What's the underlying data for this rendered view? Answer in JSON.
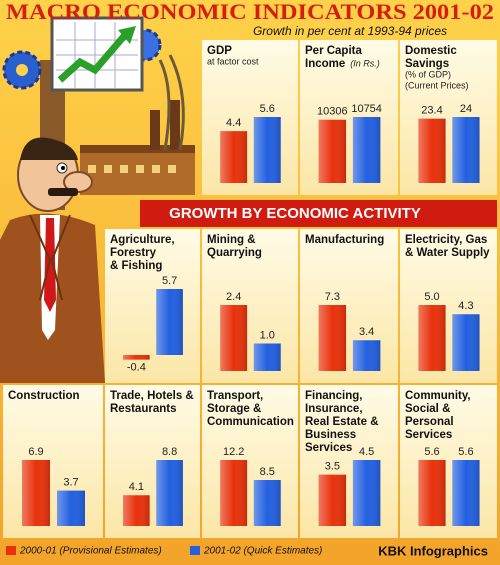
{
  "title": "MACRO ECONOMIC INDICATORS 2001-02",
  "subtitle": "Growth in per cent at 1993-94 prices",
  "section_heading": "GROWTH BY ECONOMIC ACTIVITY",
  "legend": [
    {
      "name": "2000-01 (Provisional Estimates)",
      "color": "#e8320c"
    },
    {
      "name": "2001-02 (Quick Estimates)",
      "color": "#2360e0"
    }
  ],
  "credit": "KBK Infographics",
  "chart_data": [
    {
      "type": "bar",
      "title": [
        "GDP"
      ],
      "subtitle": [
        "at factor cost"
      ],
      "values": [
        4.4,
        5.6
      ]
    },
    {
      "type": "bar",
      "title": [
        "Per Capita",
        "Income"
      ],
      "note": "(In Rs.)",
      "values": [
        10306,
        10754
      ]
    },
    {
      "type": "bar",
      "title": [
        "Domestic",
        "Savings"
      ],
      "subtitle": [
        "(% of GDP)",
        "(Current Prices)"
      ],
      "values": [
        23.4,
        24
      ]
    },
    {
      "type": "bar",
      "title": [
        "Agriculture,",
        "Forestry",
        "& Fishing"
      ],
      "values": [
        -0.4,
        5.7
      ]
    },
    {
      "type": "bar",
      "title": [
        "Mining &",
        "Quarrying"
      ],
      "values": [
        2.4,
        1.0
      ],
      "value_labels": [
        "2.4",
        "1.0"
      ]
    },
    {
      "type": "bar",
      "title": [
        "Manufacturing"
      ],
      "values": [
        7.3,
        3.4
      ]
    },
    {
      "type": "bar",
      "title": [
        "Electricity, Gas",
        "& Water Supply"
      ],
      "values": [
        5.0,
        4.3
      ],
      "value_labels": [
        "5.0",
        "4.3"
      ]
    },
    {
      "type": "bar",
      "title": [
        "Construction"
      ],
      "values": [
        6.9,
        3.7
      ]
    },
    {
      "type": "bar",
      "title": [
        "Trade, Hotels &",
        "Restaurants"
      ],
      "values": [
        4.1,
        8.8
      ]
    },
    {
      "type": "bar",
      "title": [
        "Transport,",
        "Storage &",
        "Communication"
      ],
      "values": [
        12.2,
        8.5
      ]
    },
    {
      "type": "bar",
      "title": [
        "Financing,",
        "Insurance,",
        "Real Estate &",
        "Business",
        "Services"
      ],
      "values": [
        3.5,
        4.5
      ]
    },
    {
      "type": "bar",
      "title": [
        "Community,",
        "Social &",
        "Personal",
        "Services"
      ],
      "values": [
        5.6,
        5.6
      ],
      "value_labels": [
        "5.6",
        "5.6"
      ]
    }
  ]
}
